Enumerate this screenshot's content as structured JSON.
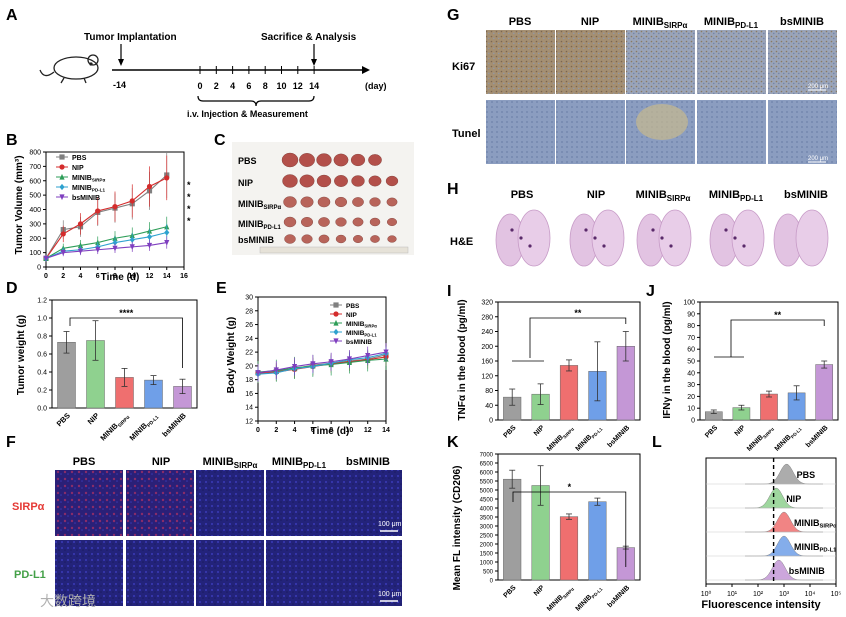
{
  "colors": {
    "pbs": "#9e9e9e",
    "nip": "#8fd18f",
    "sirpa": "#ef6f6f",
    "pdl1": "#6f9fe8",
    "bsminib": "#c497d6",
    "line_pbs": "#808080",
    "line_nip": "#d42c2c",
    "line_sirpa": "#2e9e59",
    "line_pdl1": "#2ea2cf",
    "line_bsminib": "#7f3fbf",
    "fluor_bg": "#2a2a8a",
    "fluor_red": "#d03060",
    "ihc_brown": "#a08a6e",
    "ihc_blue": "#7f92b5",
    "he_pink": "#d9a9d9"
  },
  "panel_letters": [
    "A",
    "B",
    "C",
    "D",
    "E",
    "F",
    "G",
    "H",
    "I",
    "J",
    "K",
    "L"
  ],
  "groups": {
    "pbs": "PBS",
    "nip": "NIP",
    "minib": "MINIB",
    "sirpa_sub": "SIRPα",
    "pdl1_sub": "PD-L1",
    "bsminib": "bsMINIB"
  },
  "panelA": {
    "tumor_implantation": "Tumor Implantation",
    "sacrifice": "Sacrifice & Analysis",
    "day_m14": "-14",
    "days": [
      "0",
      "2",
      "4",
      "6",
      "8",
      "10",
      "12",
      "14"
    ],
    "day_unit": "(day)",
    "injection": "i.v.  Injection & Measurement"
  },
  "chartB": {
    "type": "line",
    "ylabel": "Tumor Volume (mm³)",
    "xlabel": "Time (d)",
    "x": [
      0,
      2,
      4,
      6,
      8,
      10,
      12,
      14
    ],
    "xticks": [
      "0",
      "2",
      "4",
      "6",
      "8",
      "10",
      "12",
      "14",
      "16"
    ],
    "yticks": [
      "0",
      "100",
      "200",
      "300",
      "400",
      "500",
      "600",
      "700",
      "800"
    ],
    "ylim": [
      0,
      800
    ],
    "xlim": [
      0,
      16
    ],
    "series": [
      {
        "name": "PBS",
        "values": [
          60,
          260,
          280,
          380,
          410,
          440,
          530,
          640
        ]
      },
      {
        "name": "NIP",
        "values": [
          60,
          230,
          300,
          390,
          420,
          460,
          560,
          620
        ]
      },
      {
        "name": "MINIBSIRPα",
        "values": [
          60,
          130,
          150,
          170,
          200,
          220,
          250,
          280
        ]
      },
      {
        "name": "MINIBPD-L1",
        "values": [
          60,
          110,
          120,
          140,
          170,
          190,
          210,
          240
        ]
      },
      {
        "name": "bsMINIB",
        "values": [
          60,
          100,
          110,
          120,
          130,
          140,
          150,
          170
        ]
      }
    ],
    "sig_marks": [
      "*",
      "*",
      "*",
      "*"
    ]
  },
  "chartD": {
    "type": "bar",
    "ylabel": "Tumor weight (g)",
    "categories": [
      "PBS",
      "NIP",
      "MINIBSIRPα",
      "MINIBPD-L1",
      "bsMINIB"
    ],
    "values": [
      0.73,
      0.75,
      0.34,
      0.31,
      0.24
    ],
    "errors": [
      0.12,
      0.22,
      0.1,
      0.05,
      0.08
    ],
    "ylim": [
      0,
      1.2
    ],
    "yticks": [
      "0.0",
      "0.2",
      "0.4",
      "0.6",
      "0.8",
      "1.0",
      "1.2"
    ],
    "sig": "****"
  },
  "chartE": {
    "type": "line",
    "ylabel": "Body Weight (g)",
    "xlabel": "Time (d)",
    "x": [
      0,
      2,
      4,
      6,
      8,
      10,
      12,
      14
    ],
    "xticks": [
      "0",
      "2",
      "4",
      "6",
      "8",
      "10",
      "12",
      "14"
    ],
    "yticks": [
      "12",
      "14",
      "16",
      "18",
      "20",
      "22",
      "24",
      "26",
      "28",
      "30"
    ],
    "ylim": [
      12,
      30
    ],
    "series": [
      {
        "name": "PBS",
        "values": [
          19.0,
          19.2,
          19.6,
          20.1,
          20.4,
          20.7,
          21.0,
          21.6
        ]
      },
      {
        "name": "NIP",
        "values": [
          18.9,
          19.1,
          19.5,
          19.9,
          20.3,
          20.6,
          20.9,
          21.3
        ]
      },
      {
        "name": "MINIBSIRPα",
        "values": [
          19.1,
          19.3,
          19.7,
          20.0,
          20.2,
          20.5,
          20.8,
          21.0
        ]
      },
      {
        "name": "MINIBPD-L1",
        "values": [
          18.8,
          19.0,
          19.6,
          19.9,
          20.4,
          20.9,
          21.2,
          21.8
        ]
      },
      {
        "name": "bsMINIB",
        "values": [
          19.0,
          19.4,
          19.9,
          20.3,
          20.6,
          21.0,
          21.5,
          22.0
        ]
      }
    ]
  },
  "chartI": {
    "type": "bar",
    "ylabel": "TNFα in the blood (pg/ml)",
    "categories": [
      "PBS",
      "NIP",
      "MINIBSIRPα",
      "MINIBPD-L1",
      "bsMINIB"
    ],
    "values": [
      62,
      70,
      148,
      132,
      200
    ],
    "errors": [
      22,
      28,
      15,
      80,
      40
    ],
    "ylim": [
      0,
      320
    ],
    "yticks": [
      "0",
      "40",
      "80",
      "120",
      "160",
      "200",
      "240",
      "280",
      "320"
    ],
    "sig": "**"
  },
  "chartJ": {
    "type": "bar",
    "ylabel": "IFNγ in the blood (pg/ml)",
    "categories": [
      "PBS",
      "NIP",
      "MINIBSIRPα",
      "MINIBPD-L1",
      "bsMINIB"
    ],
    "values": [
      7,
      10.5,
      22,
      23,
      47
    ],
    "errors": [
      1.5,
      2,
      2.5,
      6,
      3
    ],
    "ylim": [
      0,
      100
    ],
    "yticks": [
      "0",
      "10",
      "20",
      "30",
      "40",
      "50",
      "60",
      "70",
      "80",
      "90",
      "100"
    ],
    "sig": "**"
  },
  "chartK": {
    "type": "bar",
    "ylabel": "Mean FL intensity (CD206)",
    "categories": [
      "PBS",
      "NIP",
      "MINIBSIRPα",
      "MINIBPD-L1",
      "bsMINIB"
    ],
    "values": [
      5600,
      5250,
      3520,
      4350,
      1800
    ],
    "errors": [
      500,
      1100,
      150,
      200,
      80
    ],
    "ylim": [
      0,
      7000
    ],
    "yticks": [
      "0",
      "500",
      "1000",
      "1500",
      "2000",
      "2500",
      "3000",
      "3500",
      "4000",
      "4500",
      "5000",
      "5500",
      "6000",
      "6500",
      "7000"
    ],
    "sig": "*"
  },
  "panelL": {
    "xlabel": "Fluorescence intensity",
    "xticks": [
      "10⁰",
      "10¹",
      "10²",
      "10³",
      "10⁴",
      "10⁵"
    ],
    "labels": [
      "PBS",
      "NIP",
      "MINIBSIRPα",
      "MINIBPD-L1",
      "bsMINIB"
    ],
    "peaks_log10": [
      3.1,
      2.7,
      3.0,
      3.0,
      2.8
    ],
    "threshold_log10": 2.6
  },
  "panelF": {
    "rows": [
      "SIRPα",
      "PD-L1"
    ],
    "scale": "100 μm"
  },
  "panelG": {
    "rows": [
      "Ki67",
      "Tunel"
    ],
    "scale": "200 μm"
  },
  "panelH": {
    "row": "H&E"
  },
  "watermark": "大数跨境"
}
